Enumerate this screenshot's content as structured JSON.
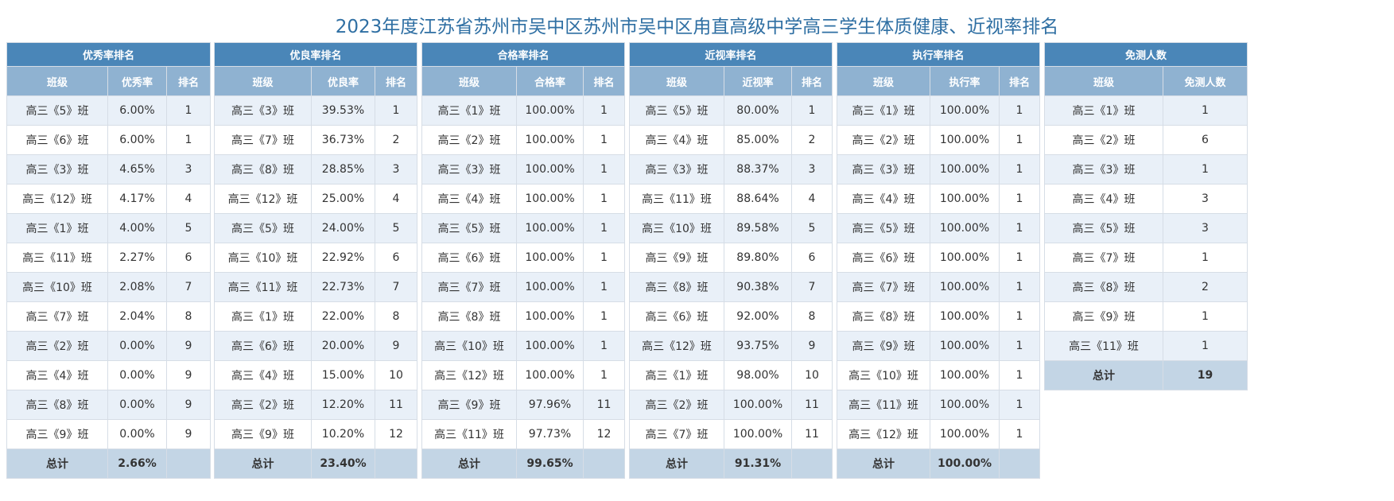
{
  "title": "2023年度江苏省苏州市吴中区苏州市吴中区甪直高级中学高三学生体质健康、近视率排名",
  "tables": [
    {
      "title": "优秀率排名",
      "columns": [
        "班级",
        "优秀率",
        "排名"
      ],
      "rows": [
        [
          "高三《5》班",
          "6.00%",
          "1"
        ],
        [
          "高三《6》班",
          "6.00%",
          "1"
        ],
        [
          "高三《3》班",
          "4.65%",
          "3"
        ],
        [
          "高三《12》班",
          "4.17%",
          "4"
        ],
        [
          "高三《1》班",
          "4.00%",
          "5"
        ],
        [
          "高三《11》班",
          "2.27%",
          "6"
        ],
        [
          "高三《10》班",
          "2.08%",
          "7"
        ],
        [
          "高三《7》班",
          "2.04%",
          "8"
        ],
        [
          "高三《2》班",
          "0.00%",
          "9"
        ],
        [
          "高三《4》班",
          "0.00%",
          "9"
        ],
        [
          "高三《8》班",
          "0.00%",
          "9"
        ],
        [
          "高三《9》班",
          "0.00%",
          "9"
        ]
      ],
      "total": [
        "总计",
        "2.66%",
        ""
      ]
    },
    {
      "title": "优良率排名",
      "columns": [
        "班级",
        "优良率",
        "排名"
      ],
      "rows": [
        [
          "高三《3》班",
          "39.53%",
          "1"
        ],
        [
          "高三《7》班",
          "36.73%",
          "2"
        ],
        [
          "高三《8》班",
          "28.85%",
          "3"
        ],
        [
          "高三《12》班",
          "25.00%",
          "4"
        ],
        [
          "高三《5》班",
          "24.00%",
          "5"
        ],
        [
          "高三《10》班",
          "22.92%",
          "6"
        ],
        [
          "高三《11》班",
          "22.73%",
          "7"
        ],
        [
          "高三《1》班",
          "22.00%",
          "8"
        ],
        [
          "高三《6》班",
          "20.00%",
          "9"
        ],
        [
          "高三《4》班",
          "15.00%",
          "10"
        ],
        [
          "高三《2》班",
          "12.20%",
          "11"
        ],
        [
          "高三《9》班",
          "10.20%",
          "12"
        ]
      ],
      "total": [
        "总计",
        "23.40%",
        ""
      ]
    },
    {
      "title": "合格率排名",
      "columns": [
        "班级",
        "合格率",
        "排名"
      ],
      "rows": [
        [
          "高三《1》班",
          "100.00%",
          "1"
        ],
        [
          "高三《2》班",
          "100.00%",
          "1"
        ],
        [
          "高三《3》班",
          "100.00%",
          "1"
        ],
        [
          "高三《4》班",
          "100.00%",
          "1"
        ],
        [
          "高三《5》班",
          "100.00%",
          "1"
        ],
        [
          "高三《6》班",
          "100.00%",
          "1"
        ],
        [
          "高三《7》班",
          "100.00%",
          "1"
        ],
        [
          "高三《8》班",
          "100.00%",
          "1"
        ],
        [
          "高三《10》班",
          "100.00%",
          "1"
        ],
        [
          "高三《12》班",
          "100.00%",
          "1"
        ],
        [
          "高三《9》班",
          "97.96%",
          "11"
        ],
        [
          "高三《11》班",
          "97.73%",
          "12"
        ]
      ],
      "total": [
        "总计",
        "99.65%",
        ""
      ]
    },
    {
      "title": "近视率排名",
      "columns": [
        "班级",
        "近视率",
        "排名"
      ],
      "rows": [
        [
          "高三《5》班",
          "80.00%",
          "1"
        ],
        [
          "高三《4》班",
          "85.00%",
          "2"
        ],
        [
          "高三《3》班",
          "88.37%",
          "3"
        ],
        [
          "高三《11》班",
          "88.64%",
          "4"
        ],
        [
          "高三《10》班",
          "89.58%",
          "5"
        ],
        [
          "高三《9》班",
          "89.80%",
          "6"
        ],
        [
          "高三《8》班",
          "90.38%",
          "7"
        ],
        [
          "高三《6》班",
          "92.00%",
          "8"
        ],
        [
          "高三《12》班",
          "93.75%",
          "9"
        ],
        [
          "高三《1》班",
          "98.00%",
          "10"
        ],
        [
          "高三《2》班",
          "100.00%",
          "11"
        ],
        [
          "高三《7》班",
          "100.00%",
          "11"
        ]
      ],
      "total": [
        "总计",
        "91.31%",
        ""
      ]
    },
    {
      "title": "执行率排名",
      "columns": [
        "班级",
        "执行率",
        "排名"
      ],
      "rows": [
        [
          "高三《1》班",
          "100.00%",
          "1"
        ],
        [
          "高三《2》班",
          "100.00%",
          "1"
        ],
        [
          "高三《3》班",
          "100.00%",
          "1"
        ],
        [
          "高三《4》班",
          "100.00%",
          "1"
        ],
        [
          "高三《5》班",
          "100.00%",
          "1"
        ],
        [
          "高三《6》班",
          "100.00%",
          "1"
        ],
        [
          "高三《7》班",
          "100.00%",
          "1"
        ],
        [
          "高三《8》班",
          "100.00%",
          "1"
        ],
        [
          "高三《9》班",
          "100.00%",
          "1"
        ],
        [
          "高三《10》班",
          "100.00%",
          "1"
        ],
        [
          "高三《11》班",
          "100.00%",
          "1"
        ],
        [
          "高三《12》班",
          "100.00%",
          "1"
        ]
      ],
      "total": [
        "总计",
        "100.00%",
        ""
      ]
    },
    {
      "title": "免测人数",
      "columns": [
        "班级",
        "免测人数"
      ],
      "rows": [
        [
          "高三《1》班",
          "1"
        ],
        [
          "高三《2》班",
          "6"
        ],
        [
          "高三《3》班",
          "1"
        ],
        [
          "高三《4》班",
          "3"
        ],
        [
          "高三《5》班",
          "3"
        ],
        [
          "高三《7》班",
          "1"
        ],
        [
          "高三《8》班",
          "2"
        ],
        [
          "高三《9》班",
          "1"
        ],
        [
          "高三《11》班",
          "1"
        ]
      ],
      "total": [
        "总计",
        "19"
      ]
    }
  ]
}
